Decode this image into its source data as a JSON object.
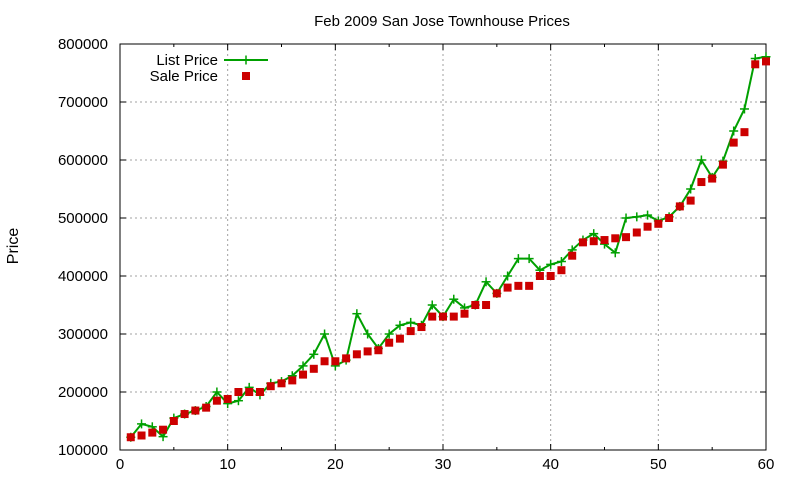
{
  "chart_data": {
    "type": "line",
    "title": "Feb 2009 San Jose Townhouse Prices",
    "xlabel": "",
    "ylabel": "Price",
    "xlim": [
      0,
      60
    ],
    "ylim": [
      100000,
      800000
    ],
    "xticks": [
      0,
      10,
      20,
      30,
      40,
      50,
      60
    ],
    "yticks": [
      100000,
      200000,
      300000,
      400000,
      500000,
      600000,
      700000,
      800000
    ],
    "grid": true,
    "legend": "top-left",
    "x": [
      1,
      2,
      3,
      4,
      5,
      6,
      7,
      8,
      9,
      10,
      11,
      12,
      13,
      14,
      15,
      16,
      17,
      18,
      19,
      20,
      21,
      22,
      23,
      24,
      25,
      26,
      27,
      28,
      29,
      30,
      31,
      32,
      33,
      34,
      35,
      36,
      37,
      38,
      39,
      40,
      41,
      42,
      43,
      44,
      45,
      46,
      47,
      48,
      49,
      50,
      51,
      52,
      53,
      54,
      55,
      56,
      57,
      58,
      59,
      60
    ],
    "series": [
      {
        "name": "List Price",
        "color": "#00a000",
        "style": "line+cross",
        "values": [
          122000,
          145000,
          140000,
          123000,
          155000,
          162000,
          168000,
          175000,
          200000,
          180000,
          185000,
          208000,
          195000,
          215000,
          218000,
          228000,
          245000,
          265000,
          300000,
          245000,
          255000,
          335000,
          300000,
          275000,
          300000,
          315000,
          320000,
          315000,
          350000,
          330000,
          360000,
          345000,
          350000,
          390000,
          370000,
          400000,
          430000,
          430000,
          410000,
          420000,
          425000,
          445000,
          462000,
          473000,
          455000,
          440000,
          500000,
          502000,
          505000,
          495000,
          502000,
          520000,
          550000,
          600000,
          570000,
          598000,
          650000,
          688000,
          775000,
          778000
        ]
      },
      {
        "name": "Sale Price",
        "color": "#cc0000",
        "style": "square",
        "values": [
          122000,
          125000,
          130000,
          135000,
          150000,
          162000,
          168000,
          173000,
          185000,
          188000,
          200000,
          200000,
          200000,
          210000,
          215000,
          220000,
          230000,
          240000,
          253000,
          253000,
          258000,
          265000,
          270000,
          272000,
          285000,
          292000,
          305000,
          312000,
          330000,
          330000,
          330000,
          335000,
          350000,
          350000,
          370000,
          380000,
          383000,
          383000,
          400000,
          400000,
          410000,
          435000,
          458000,
          460000,
          462000,
          465000,
          467000,
          475000,
          485000,
          490000,
          500000,
          520000,
          530000,
          562000,
          568000,
          592000,
          630000,
          648000,
          765000,
          770000
        ]
      }
    ]
  }
}
